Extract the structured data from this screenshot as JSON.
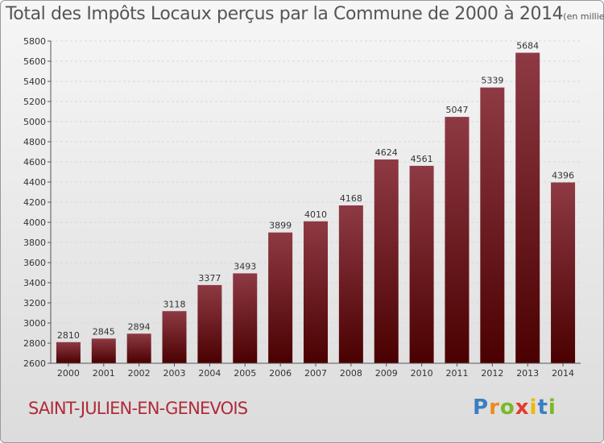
{
  "colors": {
    "bar_top": "#8e3a44",
    "bar_bottom": "#4a0000",
    "axis": "#555555",
    "grid": "#d8d8d8",
    "title": "#555555",
    "commune": "#b02a3a"
  },
  "chart_data": {
    "type": "bar",
    "title": "Total des Impôts Locaux perçus par la Commune de 2000 à 2014",
    "subtitle": "(en milliers d'€)",
    "xlabel": "",
    "ylabel": "",
    "categories": [
      "2000",
      "2001",
      "2002",
      "2003",
      "2004",
      "2005",
      "2006",
      "2007",
      "2008",
      "2009",
      "2010",
      "2011",
      "2012",
      "2013",
      "2014"
    ],
    "values": [
      2810,
      2845,
      2894,
      3118,
      3377,
      3493,
      3899,
      4010,
      4168,
      4624,
      4561,
      5047,
      5339,
      5684,
      4396
    ],
    "ylim": [
      2600,
      5800
    ],
    "yticks": [
      2600,
      2800,
      3000,
      3200,
      3400,
      3600,
      3800,
      4000,
      4200,
      4400,
      4600,
      4800,
      5000,
      5200,
      5400,
      5600,
      5800
    ],
    "grid": true,
    "legend": "none"
  },
  "commune": "SAINT-JULIEN-EN-GENEVOIS",
  "logo": {
    "text": "Proxiti",
    "letters": [
      {
        "ch": "P",
        "color": "#3a7fc1"
      },
      {
        "ch": "r",
        "color": "#f08a1c"
      },
      {
        "ch": "o",
        "color": "#7ab828"
      },
      {
        "ch": "x",
        "color": "#e43b2c"
      },
      {
        "ch": "i",
        "color": "#f2b800"
      },
      {
        "ch": "t",
        "color": "#3a7fc1"
      },
      {
        "ch": "i",
        "color": "#7ab828"
      }
    ]
  }
}
